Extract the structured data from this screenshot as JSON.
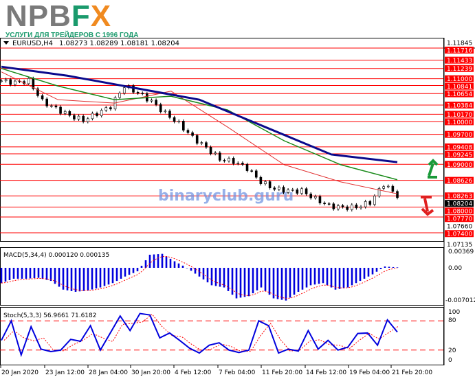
{
  "logo": {
    "n": "NPB",
    "fx_f": "F",
    "fx_x": "X",
    "tagline": "УСЛУГИ ДЛЯ ТРЕЙДЕРОВ С 1996 ГОДА"
  },
  "header": {
    "symbol": "EURUSD,H4",
    "ohlc": "1.08273 1.08289 1.08181 1.08204"
  },
  "watermark": "binaryclub.guru",
  "colors": {
    "level": "#ff0000",
    "ma_slow": "#0a0a8c",
    "ma_mid": "#1a8a1a",
    "ma_fast": "#e03030",
    "candle": "#000000",
    "macd": "#0000dd",
    "stoch_main": "#0000dd",
    "signal": "#ff0000",
    "up_arrow": "#1a9a3a",
    "down_arrow": "#e02020"
  },
  "price_axis": {
    "top_tick": "1.11845",
    "mid_tick": "1.07660",
    "bottom_tick": "1.07135",
    "current": "1.08204"
  },
  "levels": [
    "1.11716",
    "1.11433",
    "1.11239",
    "1.11000",
    "1.10841",
    "1.10654",
    "1.10384",
    "1.10170",
    "1.10000",
    "1.09700",
    "1.09408",
    "1.09245",
    "1.09000",
    "1.08626",
    "1.08263",
    "1.08000",
    "1.07770",
    "1.07400"
  ],
  "macd": {
    "label": "MACD(5,34,4) 0.000120 0.000135",
    "ticks": [
      "0.00369",
      "0.00",
      "-0.007012"
    ]
  },
  "stoch": {
    "label": "Stoch(5,3,3) 56.9661 71.6182",
    "ticks": [
      "100",
      "80",
      "20",
      "0"
    ],
    "levels": [
      80,
      20
    ]
  },
  "time_labels": [
    "20 Jan 2020",
    "23 Jan 12:00",
    "28 Jan 04:00",
    "30 Jan 20:00",
    "4 Feb 12:00",
    "7 Feb 04:00",
    "11 Feb 20:00",
    "14 Feb 12:00",
    "19 Feb 04:00",
    "21 Feb 20:00"
  ],
  "chart_data": {
    "type": "line",
    "symbol": "EURUSD",
    "timeframe": "H4",
    "ylim": [
      1.0714,
      1.1185
    ],
    "close": [
      1.1095,
      1.1091,
      1.1095,
      1.1047,
      1.103,
      1.1014,
      1.1003,
      1.1019,
      1.1035,
      1.1083,
      1.1067,
      1.1047,
      1.1019,
      1.0995,
      1.0963,
      1.0939,
      1.0912,
      1.0907,
      1.0891,
      1.0859,
      1.0843,
      1.0838,
      1.0838,
      1.0819,
      1.0803,
      1.0799,
      1.08,
      1.0811,
      1.0854,
      1.0827
    ],
    "ma_slow": [
      1.1128,
      1.1107,
      1.1079,
      1.1051,
      1.0987,
      1.0923,
      1.0905
    ],
    "ma_mid": [
      1.1124,
      1.1083,
      1.1051,
      1.1059,
      1.1027,
      1.0955,
      1.0899,
      1.0864
    ],
    "ma_fast": [
      1.1116,
      1.1051,
      1.1043,
      1.1071,
      1.0987,
      1.0899,
      1.0859,
      1.0831
    ],
    "macd_hist": [
      -0.0035,
      -0.0025,
      -0.0025,
      -0.0023,
      -0.003,
      -0.005,
      -0.0055,
      -0.0052,
      -0.0045,
      -0.0035,
      -0.002,
      -0.0008,
      0.003,
      0.0032,
      0.0015,
      0,
      -0.002,
      -0.004,
      -0.0045,
      -0.007,
      -0.0065,
      -0.0045,
      -0.007,
      -0.0075,
      -0.0055,
      -0.004,
      -0.0035,
      -0.005,
      -0.0045,
      -0.003,
      -0.0015,
      0.0003,
      0.0001
    ],
    "macd_range": [
      -0.007012,
      0.00369
    ],
    "stoch_k": [
      40,
      80,
      10,
      68,
      22,
      17,
      20,
      42,
      38,
      70,
      20,
      55,
      90,
      60,
      95,
      92,
      45,
      55,
      40,
      24,
      14,
      30,
      35,
      20,
      15,
      20,
      80,
      70,
      14,
      22,
      18,
      60,
      22,
      40,
      20,
      26,
      54,
      55,
      30,
      82,
      57
    ]
  }
}
